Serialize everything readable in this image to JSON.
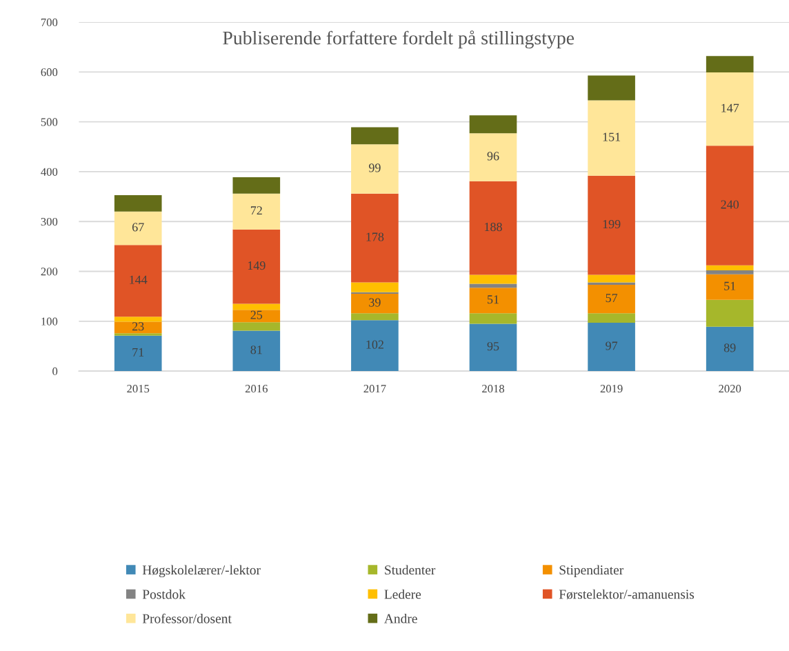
{
  "chart_data": {
    "type": "bar",
    "title": "Publiserende forfattere fordelt på stillingstype",
    "stacked": true,
    "categories": [
      "2015",
      "2016",
      "2017",
      "2018",
      "2019",
      "2020"
    ],
    "series": [
      {
        "name": "Høgskolelærer/-lektor",
        "color": "#4189b6",
        "values": [
          71,
          81,
          102,
          95,
          97,
          89
        ],
        "value_labels": [
          "71",
          "81",
          "102",
          "95",
          "97",
          "89"
        ]
      },
      {
        "name": "Studenter",
        "color": "#a6b72b",
        "values": [
          5,
          17,
          14,
          21,
          19,
          54
        ],
        "value_labels": [
          null,
          null,
          null,
          null,
          null,
          null
        ]
      },
      {
        "name": "Stipendiater",
        "color": "#f39000",
        "values": [
          23,
          25,
          39,
          51,
          57,
          51
        ],
        "value_labels": [
          "23",
          "25",
          "39",
          "51",
          "57",
          "51"
        ]
      },
      {
        "name": "Postdok",
        "color": "#838383",
        "values": [
          0,
          0,
          3,
          8,
          5,
          8
        ],
        "value_labels": [
          null,
          null,
          null,
          null,
          null,
          null
        ]
      },
      {
        "name": "Ledere",
        "color": "#ffbf00",
        "values": [
          10,
          12,
          20,
          18,
          15,
          10
        ],
        "value_labels": [
          null,
          null,
          null,
          null,
          null,
          null
        ]
      },
      {
        "name": "Førstelektor/-amanuensis",
        "color": "#e05426",
        "values": [
          144,
          149,
          178,
          188,
          199,
          240
        ],
        "value_labels": [
          "144",
          "149",
          "178",
          "188",
          "199",
          "240"
        ]
      },
      {
        "name": "Professor/dosent",
        "color": "#ffe699",
        "values": [
          67,
          72,
          99,
          96,
          151,
          147
        ],
        "value_labels": [
          "67",
          "72",
          "99",
          "96",
          "151",
          "147"
        ]
      },
      {
        "name": "Andre",
        "color": "#646d18",
        "values": [
          33,
          33,
          34,
          36,
          50,
          33
        ],
        "value_labels": [
          null,
          null,
          null,
          null,
          null,
          null
        ]
      }
    ],
    "ylim": [
      0,
      700
    ],
    "yticks": [
      0,
      100,
      200,
      300,
      400,
      500,
      600,
      700
    ],
    "grid": "y",
    "legend": "bottom"
  }
}
